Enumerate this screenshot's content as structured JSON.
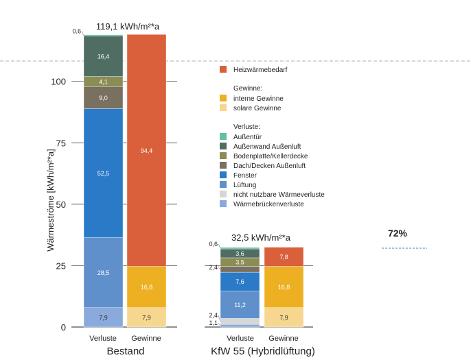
{
  "y_axis": {
    "label": "Wärmeströme [kWh/m²*a]",
    "ticks": [
      0,
      25,
      50,
      75,
      100
    ]
  },
  "groups": [
    {
      "title": "Bestand",
      "total_label": "119,1 kWh/m²*a",
      "bar_labels": [
        "Verluste",
        "Gewinne"
      ]
    },
    {
      "title": "KfW 55 (Hybridlüftung)",
      "total_label": "32,5 kWh/m²*a",
      "bar_labels": [
        "Verluste",
        "Gewinne"
      ]
    }
  ],
  "reduction_label": "72%",
  "legend": {
    "heating": {
      "label": "Heizwärmebedarf",
      "color": "#d9603b"
    },
    "gains_title": "Gewinne:",
    "gains": [
      {
        "label": "interne Gewinne",
        "color": "#edb023"
      },
      {
        "label": "solare Gewinne",
        "color": "#f7d68f"
      }
    ],
    "losses_title": "Verluste:",
    "losses": [
      {
        "label": "Außentür",
        "color": "#63c1a0"
      },
      {
        "label": "Außenwand Außenluft",
        "color": "#4f6d63"
      },
      {
        "label": "Bodenplatte/Kellerdecke",
        "color": "#8c8c55"
      },
      {
        "label": "Dach/Decken Außenluft",
        "color": "#7a7060"
      },
      {
        "label": "Fenster",
        "color": "#2a7ac8"
      },
      {
        "label": "Lüftung",
        "color": "#5f90cc"
      },
      {
        "label": "nicht nutzbare Wärmeverluste",
        "color": "#d6d6d6"
      },
      {
        "label": "Wärmebrückenverluste",
        "color": "#8aaadc"
      }
    ]
  },
  "chart_data": {
    "type": "bar",
    "stacked": true,
    "ylim": [
      0,
      120
    ],
    "ylabel": "Wärmeströme [kWh/m²*a]",
    "yticks": [
      0,
      25,
      50,
      75,
      100
    ],
    "grid": "horizontal lines at ticks",
    "groups": [
      "Bestand",
      "KfW 55 (Hybridlüftung)"
    ],
    "bars": [
      {
        "group": "Bestand",
        "label": "Verluste",
        "segments": [
          {
            "component": "Wärmebrückenverluste",
            "value": 7.9,
            "label": "7,9"
          },
          {
            "component": "Lüftung",
            "value": 28.5,
            "label": "28,5"
          },
          {
            "component": "Fenster",
            "value": 52.5,
            "label": "52,5"
          },
          {
            "component": "Dach/Decken Außenluft",
            "value": 9.0,
            "label": "9,0"
          },
          {
            "component": "Bodenplatte/Kellerdecke",
            "value": 4.1,
            "label": "4,1"
          },
          {
            "component": "Außenwand Außenluft",
            "value": 16.4,
            "label": "16,4"
          },
          {
            "component": "Außentür",
            "value": 0.6,
            "label": "0,6"
          }
        ]
      },
      {
        "group": "Bestand",
        "label": "Gewinne",
        "segments": [
          {
            "component": "solare Gewinne",
            "value": 7.9,
            "label": "7,9"
          },
          {
            "component": "interne Gewinne",
            "value": 16.8,
            "label": "16,8"
          },
          {
            "component": "Heizwärmebedarf",
            "value": 94.4,
            "label": "94,4"
          }
        ]
      },
      {
        "group": "KfW 55 (Hybridlüftung)",
        "label": "Verluste",
        "segments": [
          {
            "component": "Wärmebrückenverluste",
            "value": 1.1,
            "label": "1,1"
          },
          {
            "component": "nicht nutzbare Wärmeverluste",
            "value": 2.4,
            "label": "2,4"
          },
          {
            "component": "Lüftung",
            "value": 11.2,
            "label": "11,2"
          },
          {
            "component": "Fenster",
            "value": 7.6,
            "label": "7,6"
          },
          {
            "component": "Dach/Decken Außenluft",
            "value": 2.4,
            "label": "2,4"
          },
          {
            "component": "Bodenplatte/Kellerdecke",
            "value": 3.5,
            "label": "3,5"
          },
          {
            "component": "Außenwand Außenluft",
            "value": 3.6,
            "label": "3,6"
          },
          {
            "component": "Außentür",
            "value": 0.6,
            "label": "0,6"
          }
        ]
      },
      {
        "group": "KfW 55 (Hybridlüftung)",
        "label": "Gewinne",
        "segments": [
          {
            "component": "solare Gewinne",
            "value": 7.9,
            "label": "7,9"
          },
          {
            "component": "interne Gewinne",
            "value": 16.8,
            "label": "16,8"
          },
          {
            "component": "Heizwärmebedarf",
            "value": 7.8,
            "label": "7,8"
          }
        ]
      }
    ],
    "totals": [
      119.1,
      32.5
    ],
    "reduction": "72%"
  }
}
